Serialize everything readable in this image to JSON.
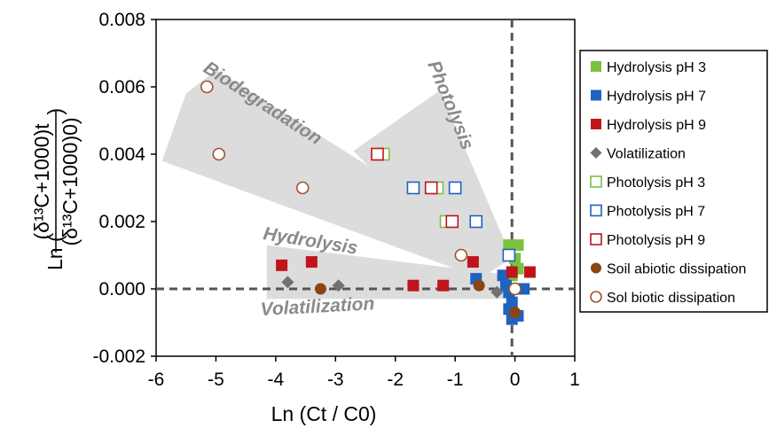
{
  "chart_data": {
    "type": "scatter",
    "title": "",
    "xlabel": "Ln (Ct / C0)",
    "ylabel": {
      "prefix": "Ln (",
      "numerator": "(δ¹³C+1000)t",
      "denominator": "(δ¹³C+1000)0)",
      "suffix": ")"
    },
    "xlim": [
      -6,
      1
    ],
    "ylim": [
      -0.002,
      0.008
    ],
    "xticks": [
      "-6",
      "-5",
      "-4",
      "-3",
      "-2",
      "-1",
      "0",
      "1"
    ],
    "yticks": [
      "-0.002",
      "0.000",
      "0.002",
      "0.004",
      "0.006",
      "0.008"
    ],
    "grid": false,
    "reference_lines": [
      {
        "orientation": "vertical",
        "x": -0.05,
        "style": "dashed"
      },
      {
        "orientation": "horizontal",
        "y": 0.0,
        "style": "dashed"
      }
    ],
    "regions": [
      {
        "label": "Biodegradation",
        "polygon": [
          [
            -5.9,
            0.0038
          ],
          [
            -5.5,
            0.0058
          ],
          [
            -5.0,
            0.0065
          ],
          [
            -0.35,
            0.0013
          ],
          [
            -0.7,
            0.0004
          ]
        ]
      },
      {
        "label": "Photolysis",
        "polygon": [
          [
            -2.7,
            0.0041
          ],
          [
            -1.25,
            0.0059
          ],
          [
            -0.05,
            0.0009
          ],
          [
            -0.6,
            0.0003
          ]
        ]
      },
      {
        "label": "Hydrolysis",
        "polygon": [
          [
            -4.15,
            0.0013
          ],
          [
            -0.05,
            0.0004
          ],
          [
            -0.05,
            -0.0001
          ],
          [
            -4.15,
            0.0
          ]
        ]
      },
      {
        "label": "Volatilization",
        "polygon": [
          [
            -4.15,
            0.0
          ],
          [
            -0.05,
            0.0
          ],
          [
            -0.05,
            -0.0003
          ],
          [
            -4.15,
            -0.0003
          ]
        ]
      }
    ],
    "legend": {
      "placement": "right"
    },
    "series": [
      {
        "name": "Hydrolysis pH 3",
        "marker": "square",
        "filled": true,
        "color": "#7ac142",
        "points": [
          [
            -0.1,
            0.0013
          ],
          [
            0.05,
            0.0013
          ],
          [
            0.0,
            0.0009
          ],
          [
            0.05,
            0.0006
          ],
          [
            -0.05,
            0.0004
          ]
        ]
      },
      {
        "name": "Hydrolysis pH 7",
        "marker": "square",
        "filled": true,
        "color": "#1f62c0",
        "points": [
          [
            -0.65,
            0.0003
          ],
          [
            -0.2,
            0.0004
          ],
          [
            -0.15,
            0.0001
          ],
          [
            -0.1,
            -0.0001
          ],
          [
            -0.05,
            -0.0004
          ],
          [
            -0.1,
            -0.0006
          ],
          [
            -0.05,
            -0.0009
          ],
          [
            0.05,
            -0.0008
          ],
          [
            0.15,
            0.0
          ]
        ]
      },
      {
        "name": "Hydrolysis pH 9",
        "marker": "square",
        "filled": true,
        "color": "#c0141c",
        "points": [
          [
            -3.9,
            0.0007
          ],
          [
            -3.4,
            0.0008
          ],
          [
            -1.7,
            0.0001
          ],
          [
            -1.2,
            0.0001
          ],
          [
            -0.7,
            0.0008
          ],
          [
            -0.05,
            0.0005
          ],
          [
            0.25,
            0.0005
          ]
        ]
      },
      {
        "name": "Volatilization",
        "marker": "diamond",
        "filled": true,
        "color": "#707070",
        "points": [
          [
            -3.8,
            0.0002
          ],
          [
            -2.95,
            0.0001
          ],
          [
            -0.3,
            -0.0001
          ]
        ]
      },
      {
        "name": "Photolysis pH 3",
        "marker": "square",
        "filled": false,
        "color": "#7ac142",
        "points": [
          [
            -2.2,
            0.004
          ],
          [
            -1.3,
            0.003
          ],
          [
            -1.15,
            0.002
          ]
        ]
      },
      {
        "name": "Photolysis pH 7",
        "marker": "square",
        "filled": false,
        "color": "#1f62c0",
        "points": [
          [
            -1.7,
            0.003
          ],
          [
            -1.0,
            0.003
          ],
          [
            -0.65,
            0.002
          ],
          [
            -0.1,
            0.001
          ]
        ]
      },
      {
        "name": "Photolysis pH 9",
        "marker": "square",
        "filled": false,
        "color": "#c0141c",
        "points": [
          [
            -2.3,
            0.004
          ],
          [
            -1.4,
            0.003
          ],
          [
            -1.05,
            0.002
          ]
        ]
      },
      {
        "name": "Soil abiotic dissipation",
        "marker": "circle",
        "filled": true,
        "color": "#8b4513",
        "points": [
          [
            -3.25,
            0.0
          ],
          [
            -0.6,
            0.0001
          ],
          [
            0.0,
            -0.0007
          ]
        ]
      },
      {
        "name": "Sol biotic dissipation",
        "marker": "circle",
        "filled": false,
        "color": "#a0522d",
        "points": [
          [
            -5.15,
            0.006
          ],
          [
            -4.95,
            0.004
          ],
          [
            -3.55,
            0.003
          ],
          [
            -0.9,
            0.001
          ],
          [
            0.0,
            0.0
          ]
        ]
      }
    ]
  }
}
